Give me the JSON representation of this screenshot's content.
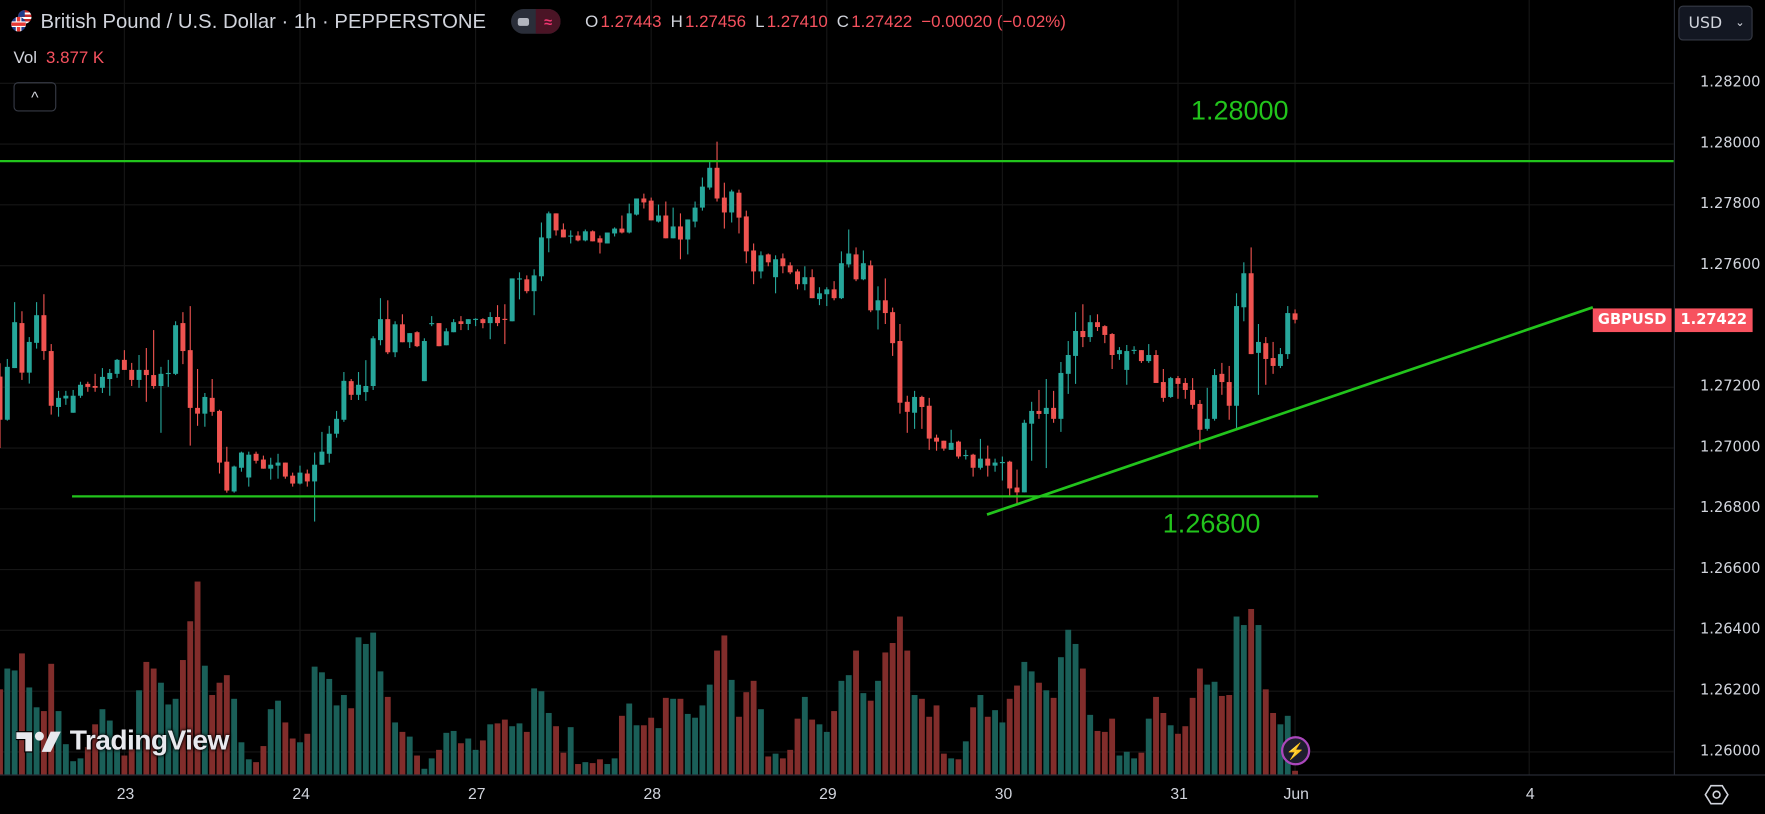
{
  "header": {
    "title": "British Pound / U.S. Dollar · 1h · PEPPERSTONE",
    "ohlc": [
      {
        "key": "O",
        "value": "1.27443"
      },
      {
        "key": "H",
        "value": "1.27456"
      },
      {
        "key": "L",
        "value": "1.27410"
      },
      {
        "key": "C",
        "value": "1.27422"
      }
    ],
    "change": "−0.00020 (−0.02%)",
    "vol_label": "Vol",
    "vol_value": "3.877 K",
    "collapse_icon": "chevron-up-icon"
  },
  "price_axis": {
    "currency": "USD",
    "symbol_label": "GBPUSD",
    "last_price": "1.27422"
  },
  "watermark": "TradingView",
  "colors": {
    "up": "#26a69a",
    "down": "#ef5350",
    "volume_up": "#1a5f58",
    "volume_down": "#812d2b",
    "drawing": "#22c41c",
    "last_price": "#f7525f"
  },
  "drawings": {
    "resistance": {
      "price": 1.27944,
      "label": "1.28000"
    },
    "support": {
      "price": 1.26841,
      "label": "1.26800"
    },
    "trendline": {
      "from": {
        "bar": 134.9,
        "price": 1.26781
      },
      "to": {
        "bar": 217.7,
        "price": 1.27463
      }
    }
  },
  "chart_data": {
    "type": "candlestick",
    "title": "British Pound / U.S. Dollar · 1h · PEPPERSTONE",
    "xlabel": "",
    "ylabel": "",
    "ylim": [
      1.2593,
      1.2847
    ],
    "grid": true,
    "y_ticks": [
      "1.28200",
      "1.28000",
      "1.27800",
      "1.27600",
      "1.27200",
      "1.27000",
      "1.26800",
      "1.26600",
      "1.26400",
      "1.26200",
      "1.26000"
    ],
    "x_ticks": [
      "23",
      "24",
      "27",
      "28",
      "29",
      "30",
      "31",
      "Jun",
      "4"
    ],
    "volume_unit": "K",
    "candles": [
      [
        1.27235,
        1.27279,
        1.27,
        1.27093
      ],
      [
        1.27093,
        1.27293,
        1.2709,
        1.27267
      ],
      [
        1.27263,
        1.2748,
        1.27263,
        1.27414
      ],
      [
        1.27411,
        1.2745,
        1.27224,
        1.27248
      ],
      [
        1.27248,
        1.27365,
        1.27212,
        1.27349
      ],
      [
        1.27346,
        1.2748,
        1.27327,
        1.27437
      ],
      [
        1.27437,
        1.27506,
        1.2729,
        1.27319
      ],
      [
        1.27319,
        1.27342,
        1.2711,
        1.27139
      ],
      [
        1.27135,
        1.27188,
        1.27103,
        1.27165
      ],
      [
        1.27163,
        1.27188,
        1.27142,
        1.27172
      ],
      [
        1.27116,
        1.27191,
        1.27116,
        1.27172
      ],
      [
        1.27172,
        1.27218,
        1.27165,
        1.27208
      ],
      [
        1.27211,
        1.27218,
        1.27185,
        1.27201
      ],
      [
        1.27204,
        1.27244,
        1.27185,
        1.27198
      ],
      [
        1.27198,
        1.27263,
        1.27181,
        1.27234
      ],
      [
        1.27227,
        1.2726,
        1.27172,
        1.27247
      ],
      [
        1.27244,
        1.27293,
        1.27231,
        1.2729
      ],
      [
        1.2729,
        1.27322,
        1.27257,
        1.27257
      ],
      [
        1.27257,
        1.2728,
        1.27204,
        1.27224
      ],
      [
        1.27224,
        1.27306,
        1.27198,
        1.27257
      ],
      [
        1.27257,
        1.27329,
        1.27152,
        1.2724
      ],
      [
        1.2724,
        1.27388,
        1.27195,
        1.27204
      ],
      [
        1.27204,
        1.27267,
        1.2705,
        1.27244
      ],
      [
        1.27246,
        1.2729,
        1.27201,
        1.27247
      ],
      [
        1.27244,
        1.27417,
        1.2724,
        1.27404
      ],
      [
        1.27411,
        1.27447,
        1.27276,
        1.27319
      ],
      [
        1.27322,
        1.27467,
        1.27008,
        1.27132
      ],
      [
        1.27132,
        1.2726,
        1.27073,
        1.27113
      ],
      [
        1.27113,
        1.27181,
        1.2707,
        1.27168
      ],
      [
        1.27165,
        1.27227,
        1.27106,
        1.27119
      ],
      [
        1.27122,
        1.27126,
        1.26916,
        1.26952
      ],
      [
        1.26955,
        1.27004,
        1.26853,
        1.2686
      ],
      [
        1.26857,
        1.26942,
        1.26853,
        1.26939
      ],
      [
        1.26935,
        1.26988,
        1.26922,
        1.26985
      ],
      [
        1.26903,
        1.26988,
        1.26873,
        1.26978
      ],
      [
        1.26981,
        1.26988,
        1.26949,
        1.26958
      ],
      [
        1.26962,
        1.26975,
        1.26932,
        1.26932
      ],
      [
        1.26932,
        1.26968,
        1.26896,
        1.26945
      ],
      [
        1.26942,
        1.26981,
        1.26899,
        1.26952
      ],
      [
        1.26952,
        1.26952,
        1.26899,
        1.26906
      ],
      [
        1.26909,
        1.26919,
        1.26873,
        1.26883
      ],
      [
        1.26883,
        1.26942,
        1.2688,
        1.26919
      ],
      [
        1.26916,
        1.26929,
        1.26873,
        1.2689
      ],
      [
        1.2689,
        1.26985,
        1.26758,
        1.26945
      ],
      [
        1.26945,
        1.27053,
        1.26945,
        1.26988
      ],
      [
        1.26981,
        1.27073,
        1.26952,
        1.27047
      ],
      [
        1.27047,
        1.27122,
        1.27034,
        1.27096
      ],
      [
        1.27093,
        1.2725,
        1.27086,
        1.27221
      ],
      [
        1.2722,
        1.27227,
        1.27158,
        1.27175
      ],
      [
        1.27175,
        1.2725,
        1.27158,
        1.27208
      ],
      [
        1.27184,
        1.27289,
        1.27155,
        1.27204
      ],
      [
        1.27204,
        1.27368,
        1.27191,
        1.27361
      ],
      [
        1.27355,
        1.27493,
        1.27338,
        1.27424
      ],
      [
        1.27424,
        1.27486,
        1.27309,
        1.27315
      ],
      [
        1.27315,
        1.27417,
        1.27299,
        1.27407
      ],
      [
        1.27407,
        1.2744,
        1.27348,
        1.27348
      ],
      [
        1.27348,
        1.27378,
        1.27329,
        1.27378
      ],
      [
        1.27381,
        1.27384,
        1.27332,
        1.27335
      ],
      [
        1.2722,
        1.27361,
        1.2722,
        1.27352
      ],
      [
        1.27409,
        1.27434,
        1.27401,
        1.27411
      ],
      [
        1.27411,
        1.27411,
        1.27335,
        1.27335
      ],
      [
        1.27338,
        1.27394,
        1.27338,
        1.27384
      ],
      [
        1.27381,
        1.27424,
        1.27381,
        1.27414
      ],
      [
        1.27417,
        1.27434,
        1.27388,
        1.27408
      ],
      [
        1.27408,
        1.27424,
        1.27388,
        1.27424
      ],
      [
        1.27424,
        1.27427,
        1.27401,
        1.27425
      ],
      [
        1.27424,
        1.27427,
        1.27394,
        1.27411
      ],
      [
        1.27411,
        1.27447,
        1.27358,
        1.27431
      ],
      [
        1.27431,
        1.2747,
        1.27401,
        1.27411
      ],
      [
        1.27425,
        1.27473,
        1.27342,
        1.27424
      ],
      [
        1.27417,
        1.27558,
        1.27417,
        1.27558
      ],
      [
        1.27557,
        1.27578,
        1.27489,
        1.27558
      ],
      [
        1.27555,
        1.27568,
        1.27509,
        1.27516
      ],
      [
        1.27516,
        1.27588,
        1.27437,
        1.27568
      ],
      [
        1.27565,
        1.27742,
        1.27549,
        1.27693
      ],
      [
        1.2769,
        1.27778,
        1.27644,
        1.27772
      ],
      [
        1.27772,
        1.27772,
        1.27699,
        1.27716
      ],
      [
        1.27719,
        1.27739,
        1.27693,
        1.27693
      ],
      [
        1.27698,
        1.27716,
        1.27673,
        1.27699
      ],
      [
        1.27699,
        1.27713,
        1.2768,
        1.27683
      ],
      [
        1.27683,
        1.27719,
        1.2768,
        1.27713
      ],
      [
        1.27713,
        1.27716,
        1.2768,
        1.2768
      ],
      [
        1.2769,
        1.27699,
        1.2764,
        1.27676
      ],
      [
        1.27673,
        1.27709,
        1.27673,
        1.27709
      ],
      [
        1.27706,
        1.27726,
        1.27696,
        1.27722
      ],
      [
        1.27722,
        1.27765,
        1.27706,
        1.27709
      ],
      [
        1.27709,
        1.27804,
        1.27706,
        1.27772
      ],
      [
        1.27768,
        1.27821,
        1.27765,
        1.27821
      ],
      [
        1.27821,
        1.27837,
        1.27788,
        1.27808
      ],
      [
        1.27814,
        1.27824,
        1.27749,
        1.27749
      ],
      [
        1.27745,
        1.27801,
        1.27742,
        1.27765
      ],
      [
        1.27765,
        1.27811,
        1.2769,
        1.2769
      ],
      [
        1.2769,
        1.27791,
        1.2769,
        1.27729
      ],
      [
        1.27729,
        1.27772,
        1.27621,
        1.27686
      ],
      [
        1.27686,
        1.27752,
        1.27637,
        1.27752
      ],
      [
        1.27745,
        1.27811,
        1.27726,
        1.27791
      ],
      [
        1.27791,
        1.2789,
        1.27781,
        1.2786
      ],
      [
        1.27857,
        1.27945,
        1.2785,
        1.27922
      ],
      [
        1.27922,
        1.28008,
        1.27811,
        1.27821
      ],
      [
        1.27824,
        1.27873,
        1.27722,
        1.27775
      ],
      [
        1.27775,
        1.2785,
        1.27742,
        1.27844
      ],
      [
        1.2784,
        1.2785,
        1.27706,
        1.27758
      ],
      [
        1.27762,
        1.27781,
        1.27608,
        1.27647
      ],
      [
        1.2765,
        1.27673,
        1.27539,
        1.27581
      ],
      [
        1.27581,
        1.27647,
        1.27558,
        1.27634
      ],
      [
        1.27637,
        1.2764,
        1.27598,
        1.27611
      ],
      [
        1.27562,
        1.27634,
        1.27509,
        1.27621
      ],
      [
        1.27624,
        1.2764,
        1.27575,
        1.27598
      ],
      [
        1.27601,
        1.27611,
        1.27572,
        1.27578
      ],
      [
        1.27581,
        1.27588,
        1.27522,
        1.27539
      ],
      [
        1.27539,
        1.27598,
        1.27519,
        1.27562
      ],
      [
        1.27562,
        1.27588,
        1.27493,
        1.27493
      ],
      [
        1.2749,
        1.27529,
        1.2747,
        1.27509
      ],
      [
        1.27506,
        1.27529,
        1.27467,
        1.27522
      ],
      [
        1.27522,
        1.27549,
        1.27486,
        1.27493
      ],
      [
        1.27493,
        1.27647,
        1.2749,
        1.27608
      ],
      [
        1.27604,
        1.27719,
        1.27594,
        1.2764
      ],
      [
        1.27637,
        1.2766,
        1.27549,
        1.27555
      ],
      [
        1.27555,
        1.2765,
        1.27552,
        1.27608
      ],
      [
        1.27601,
        1.27617,
        1.27447,
        1.27453
      ],
      [
        1.27453,
        1.27532,
        1.2739,
        1.27486
      ],
      [
        1.27486,
        1.27558,
        1.27408,
        1.27444
      ],
      [
        1.27447,
        1.27462,
        1.27303,
        1.27345
      ],
      [
        1.27352,
        1.27408,
        1.27113,
        1.27149
      ],
      [
        1.27152,
        1.27172,
        1.2705,
        1.27119
      ],
      [
        1.27116,
        1.27188,
        1.27063,
        1.27168
      ],
      [
        1.27168,
        1.27172,
        1.27063,
        1.27135
      ],
      [
        1.27139,
        1.27165,
        1.26994,
        1.27031
      ],
      [
        1.27034,
        1.27044,
        1.26991,
        1.27021
      ],
      [
        1.27024,
        1.27024,
        1.26991,
        1.26998
      ],
      [
        1.26994,
        1.2706,
        1.26994,
        1.27017
      ],
      [
        1.27021,
        1.27024,
        1.26965,
        1.26972
      ],
      [
        1.26977,
        1.26994,
        1.26962,
        1.26977
      ],
      [
        1.26978,
        1.26981,
        1.26906,
        1.26935
      ],
      [
        1.26935,
        1.2703,
        1.26929,
        1.26965
      ],
      [
        1.26965,
        1.27008,
        1.26906,
        1.26942
      ],
      [
        1.26942,
        1.26965,
        1.26922,
        1.26952
      ],
      [
        1.2695,
        1.26972,
        1.26893,
        1.26954
      ],
      [
        1.26955,
        1.26958,
        1.26837,
        1.26867
      ],
      [
        1.2687,
        1.26929,
        1.26811,
        1.26854
      ],
      [
        1.26854,
        1.27093,
        1.26854,
        1.27083
      ],
      [
        1.2708,
        1.27152,
        1.26958,
        1.27122
      ],
      [
        1.27122,
        1.27191,
        1.27096,
        1.27112
      ],
      [
        1.27112,
        1.27227,
        1.26934,
        1.27132
      ],
      [
        1.27132,
        1.27188,
        1.27083,
        1.27096
      ],
      [
        1.27096,
        1.27283,
        1.27053,
        1.27247
      ],
      [
        1.27244,
        1.27352,
        1.27178,
        1.27306
      ],
      [
        1.27303,
        1.27447,
        1.27211,
        1.27385
      ],
      [
        1.27385,
        1.27473,
        1.27332,
        1.27365
      ],
      [
        1.27365,
        1.27437,
        1.27349,
        1.27414
      ],
      [
        1.27414,
        1.2744,
        1.27385,
        1.27398
      ],
      [
        1.27401,
        1.27404,
        1.27345,
        1.27372
      ],
      [
        1.27375,
        1.27378,
        1.2726,
        1.27306
      ],
      [
        1.27309,
        1.27332,
        1.2729,
        1.27322
      ],
      [
        1.27257,
        1.27339,
        1.27208,
        1.27319
      ],
      [
        1.27322,
        1.27335,
        1.27309,
        1.27323
      ],
      [
        1.27322,
        1.27322,
        1.2728,
        1.27286
      ],
      [
        1.27286,
        1.27342,
        1.2728,
        1.27306
      ],
      [
        1.27306,
        1.27322,
        1.27214,
        1.27214
      ],
      [
        1.27217,
        1.2726,
        1.27152,
        1.27165
      ],
      [
        1.27168,
        1.27234,
        1.27165,
        1.2723
      ],
      [
        1.2723,
        1.27237,
        1.27162,
        1.27211
      ],
      [
        1.27214,
        1.2723,
        1.27162,
        1.27191
      ],
      [
        1.27191,
        1.2723,
        1.27129,
        1.27142
      ],
      [
        1.27145,
        1.27158,
        1.26996,
        1.2706
      ],
      [
        1.27063,
        1.27198,
        1.27057,
        1.27096
      ],
      [
        1.27096,
        1.2726,
        1.2709,
        1.2724
      ],
      [
        1.27244,
        1.2728,
        1.27175,
        1.27217
      ],
      [
        1.27217,
        1.2727,
        1.27093,
        1.27139
      ],
      [
        1.27139,
        1.27509,
        1.27063,
        1.27467
      ],
      [
        1.27463,
        1.27611,
        1.27417,
        1.27575
      ],
      [
        1.27575,
        1.2766,
        1.27309,
        1.27309
      ],
      [
        1.27313,
        1.27408,
        1.27175,
        1.27349
      ],
      [
        1.27345,
        1.27365,
        1.27208,
        1.27293
      ],
      [
        1.27296,
        1.27349,
        1.27244,
        1.2727
      ],
      [
        1.2727,
        1.27329,
        1.27263,
        1.27309
      ],
      [
        1.27309,
        1.27467,
        1.27293,
        1.27444
      ],
      [
        1.27443,
        1.27456,
        1.2741,
        1.27422
      ]
    ],
    "volumes": [
      90,
      112,
      110,
      128,
      92,
      71,
      67,
      117,
      67,
      32,
      14,
      17,
      29,
      53,
      69,
      57,
      27,
      20,
      27,
      89,
      119,
      112,
      97,
      74,
      80,
      121,
      162,
      204,
      115,
      84,
      97,
      105,
      80,
      34,
      16,
      13,
      30,
      69,
      78,
      55,
      38,
      34,
      43,
      114,
      108,
      101,
      73,
      84,
      70,
      145,
      138,
      150,
      109,
      82,
      55,
      45,
      40,
      20,
      6,
      17,
      26,
      44,
      46,
      33,
      38,
      26,
      36,
      53,
      54,
      58,
      51,
      54,
      45,
      91,
      88,
      65,
      51,
      23,
      50,
      11,
      13,
      12,
      16,
      11,
      17,
      62,
      75,
      52,
      52,
      60,
      49,
      81,
      80,
      80,
      64,
      60,
      73,
      95,
      131,
      147,
      100,
      61,
      87,
      99,
      69,
      19,
      22,
      17,
      26,
      59,
      82,
      58,
      53,
      45,
      67,
      99,
      105,
      131,
      86,
      78,
      99,
      129,
      139,
      167,
      131,
      84,
      80,
      61,
      73,
      22,
      17,
      16,
      35,
      71,
      84,
      61,
      68,
      55,
      80,
      94,
      119,
      109,
      97,
      89,
      81,
      124,
      153,
      138,
      112,
      63,
      46,
      45,
      59,
      20,
      24,
      17,
      23,
      59,
      82,
      65,
      52,
      43,
      51,
      81,
      112,
      95,
      98,
      83,
      84,
      167,
      158,
      175,
      158,
      90,
      65,
      53,
      62,
      3.877
    ]
  }
}
